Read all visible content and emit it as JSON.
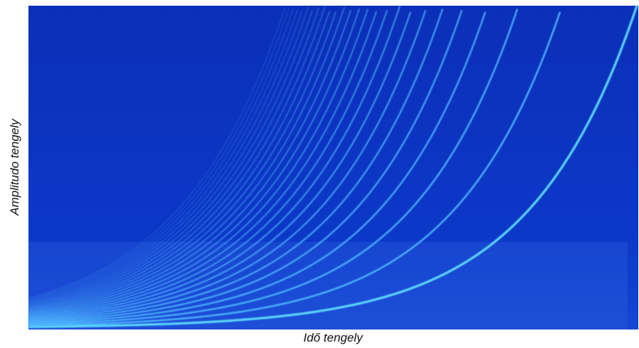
{
  "chart_data": {
    "type": "spectrogram",
    "x_label": "Idő tengely",
    "y_label": "Amplitudo tengely"
  }
}
